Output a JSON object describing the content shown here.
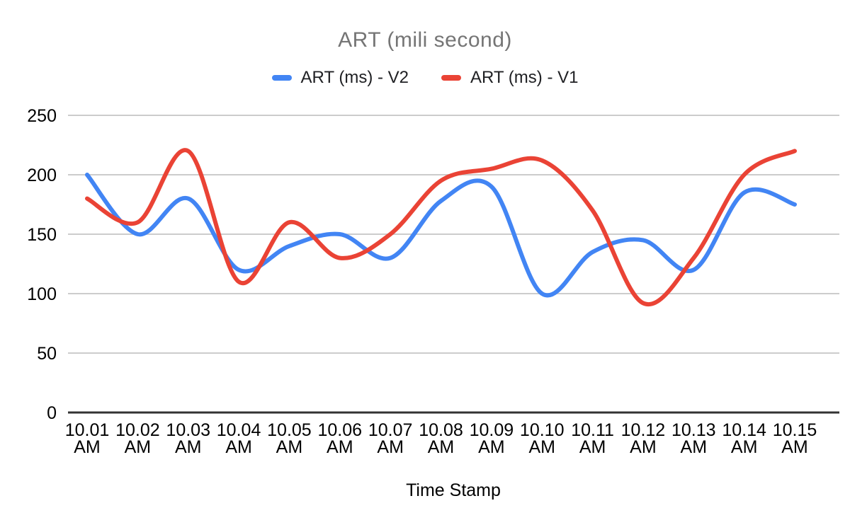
{
  "page": {
    "background": "#ffffff"
  },
  "chart_data": {
    "type": "line",
    "title": "ART (mili second)",
    "title_color": "#757575",
    "xlabel": "Time Stamp",
    "ylabel": "",
    "ylim": [
      0,
      250
    ],
    "yticks": [
      0,
      50,
      100,
      150,
      200,
      250
    ],
    "grid": true,
    "smooth": true,
    "legend_position": "top",
    "categories": [
      "10.01 AM",
      "10.02 AM",
      "10.03 AM",
      "10.04 AM",
      "10.05 AM",
      "10.06 AM",
      "10.07 AM",
      "10.08 AM",
      "10.09 AM",
      "10.10 AM",
      "10.11 AM",
      "10.12 AM",
      "10.13 AM",
      "10.14 AM",
      "10.15 AM"
    ],
    "series": [
      {
        "name": "ART (ms) - V2",
        "color": "#4285F4",
        "values": [
          200,
          150,
          180,
          120,
          140,
          150,
          130,
          178,
          190,
          100,
          135,
          145,
          120,
          185,
          175
        ]
      },
      {
        "name": "ART (ms) - V1",
        "color": "#EA4335",
        "values": [
          180,
          160,
          220,
          110,
          160,
          130,
          150,
          195,
          205,
          212,
          170,
          92,
          130,
          200,
          220
        ]
      }
    ],
    "axis": {
      "label_color": "#000000",
      "grid_color": "#cccccc",
      "baseline_color": "#333333"
    }
  }
}
